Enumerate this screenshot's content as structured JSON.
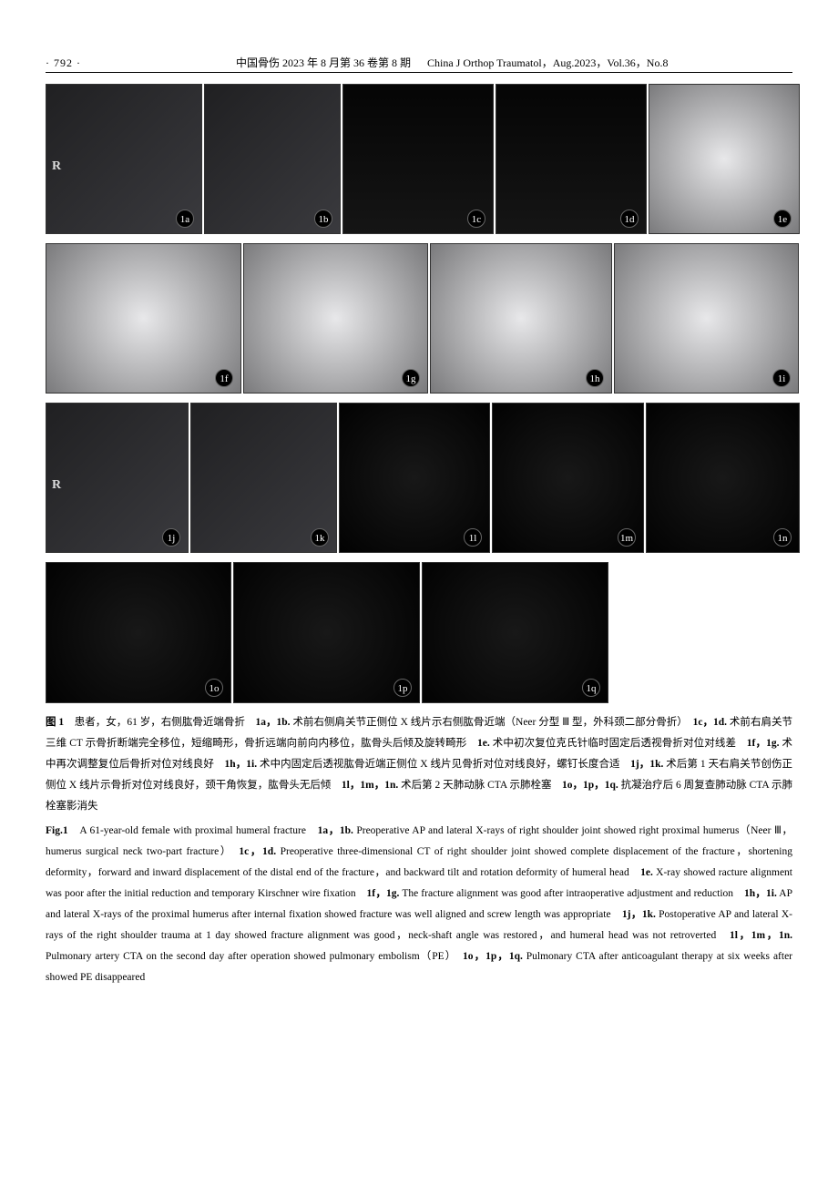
{
  "header": {
    "page_num": "· 792 ·",
    "journal_cn": "中国骨伤 2023 年 8 月第 36 卷第 8 期",
    "journal_en": "China J Orthop Traumatol，Aug.2023，Vol.36，No.8"
  },
  "figure": {
    "rows": [
      {
        "cls": "row1",
        "cells": [
          {
            "label": "1a",
            "type": "xray",
            "marker": "R"
          },
          {
            "label": "1b",
            "type": "xray"
          },
          {
            "label": "1c",
            "type": "ct3d"
          },
          {
            "label": "1d",
            "type": "ct3d"
          },
          {
            "label": "1e",
            "type": "fluoro"
          }
        ]
      },
      {
        "cls": "row2",
        "cells": [
          {
            "label": "1f",
            "type": "fluoro"
          },
          {
            "label": "1g",
            "type": "fluoro"
          },
          {
            "label": "1h",
            "type": "fluoro"
          },
          {
            "label": "1i",
            "type": "fluoro"
          }
        ]
      },
      {
        "cls": "row3",
        "cells": [
          {
            "label": "1j",
            "type": "xray",
            "marker": "R"
          },
          {
            "label": "1k",
            "type": "xray"
          },
          {
            "label": "1l",
            "type": "ct-axial"
          },
          {
            "label": "1m",
            "type": "ct-axial"
          },
          {
            "label": "1n",
            "type": "ct-axial"
          }
        ]
      },
      {
        "cls": "row4",
        "cells": [
          {
            "label": "1o",
            "type": "ct-axial"
          },
          {
            "label": "1p",
            "type": "ct-axial"
          },
          {
            "label": "1q",
            "type": "ct-axial"
          }
        ]
      }
    ],
    "caption_cn_parts": [
      {
        "b": true,
        "t": "图 1"
      },
      {
        "t": "　患者，女，61 岁，右侧肱骨近端骨折　"
      },
      {
        "b": true,
        "t": "1a，1b."
      },
      {
        "t": " 术前右侧肩关节正侧位 X 线片示右侧肱骨近端（Neer 分型 Ⅲ 型，外科颈二部分骨折）　"
      },
      {
        "b": true,
        "t": "1c，1d."
      },
      {
        "t": " 术前右肩关节三维 CT 示骨折断端完全移位，短缩畸形，骨折远端向前向内移位，肱骨头后倾及旋转畸形　"
      },
      {
        "b": true,
        "t": "1e."
      },
      {
        "t": " 术中初次复位克氏针临时固定后透视骨折对位对线差　"
      },
      {
        "b": true,
        "t": "1f，1g."
      },
      {
        "t": " 术中再次调整复位后骨折对位对线良好　"
      },
      {
        "b": true,
        "t": "1h，1i."
      },
      {
        "t": " 术中内固定后透视肱骨近端正侧位 X 线片见骨折对位对线良好，螺钉长度合适　"
      },
      {
        "b": true,
        "t": "1j，1k."
      },
      {
        "t": " 术后第 1 天右肩关节创伤正侧位 X 线片示骨折对位对线良好，颈干角恢复，肱骨头无后倾　"
      },
      {
        "b": true,
        "t": "1l，1m，1n."
      },
      {
        "t": " 术后第 2 天肺动脉 CTA 示肺栓塞　"
      },
      {
        "b": true,
        "t": "1o，1p，1q."
      },
      {
        "t": " 抗凝治疗后 6 周复查肺动脉 CTA 示肺栓塞影消失"
      }
    ],
    "caption_en_parts": [
      {
        "b": true,
        "t": "Fig.1"
      },
      {
        "t": "　A 61-year-old female with proximal humeral fracture　"
      },
      {
        "b": true,
        "t": "1a，1b."
      },
      {
        "t": " Preoperative AP and lateral X-rays of right shoulder joint showed right proximal humerus（Neer Ⅲ，humerus surgical neck two-part fracture）　"
      },
      {
        "b": true,
        "t": "1c，1d."
      },
      {
        "t": " Preoperative three-dimensional CT of right shoulder joint showed complete displacement of the fracture，shortening deformity，forward and inward displacement of the distal end of the fracture，and backward tilt and rotation deformity of humeral head　"
      },
      {
        "b": true,
        "t": "1e."
      },
      {
        "t": " X-ray showed racture alignment was poor after the initial reduction and temporary Kirschner wire fixation　"
      },
      {
        "b": true,
        "t": "1f，1g."
      },
      {
        "t": " The fracture alignment was good after intraoperative adjustment and reduction　"
      },
      {
        "b": true,
        "t": "1h，1i."
      },
      {
        "t": " AP and lateral X-rays of the proximal humerus after internal fixation showed fracture was well aligned and screw length was appropriate　"
      },
      {
        "b": true,
        "t": "1j，1k."
      },
      {
        "t": " Postoperative AP and lateral X-rays of the right shoulder trauma at 1 day showed fracture alignment was good，neck-shaft angle was restored，and humeral head was not retroverted　"
      },
      {
        "b": true,
        "t": "1l，1m，1n."
      },
      {
        "t": " Pulmonary artery CTA on the second day after operation showed pulmonary embolism（PE）　"
      },
      {
        "b": true,
        "t": "1o，1p，1q."
      },
      {
        "t": " Pulmonary CTA after anticoagulant therapy at six weeks after showed PE disappeared"
      }
    ]
  }
}
